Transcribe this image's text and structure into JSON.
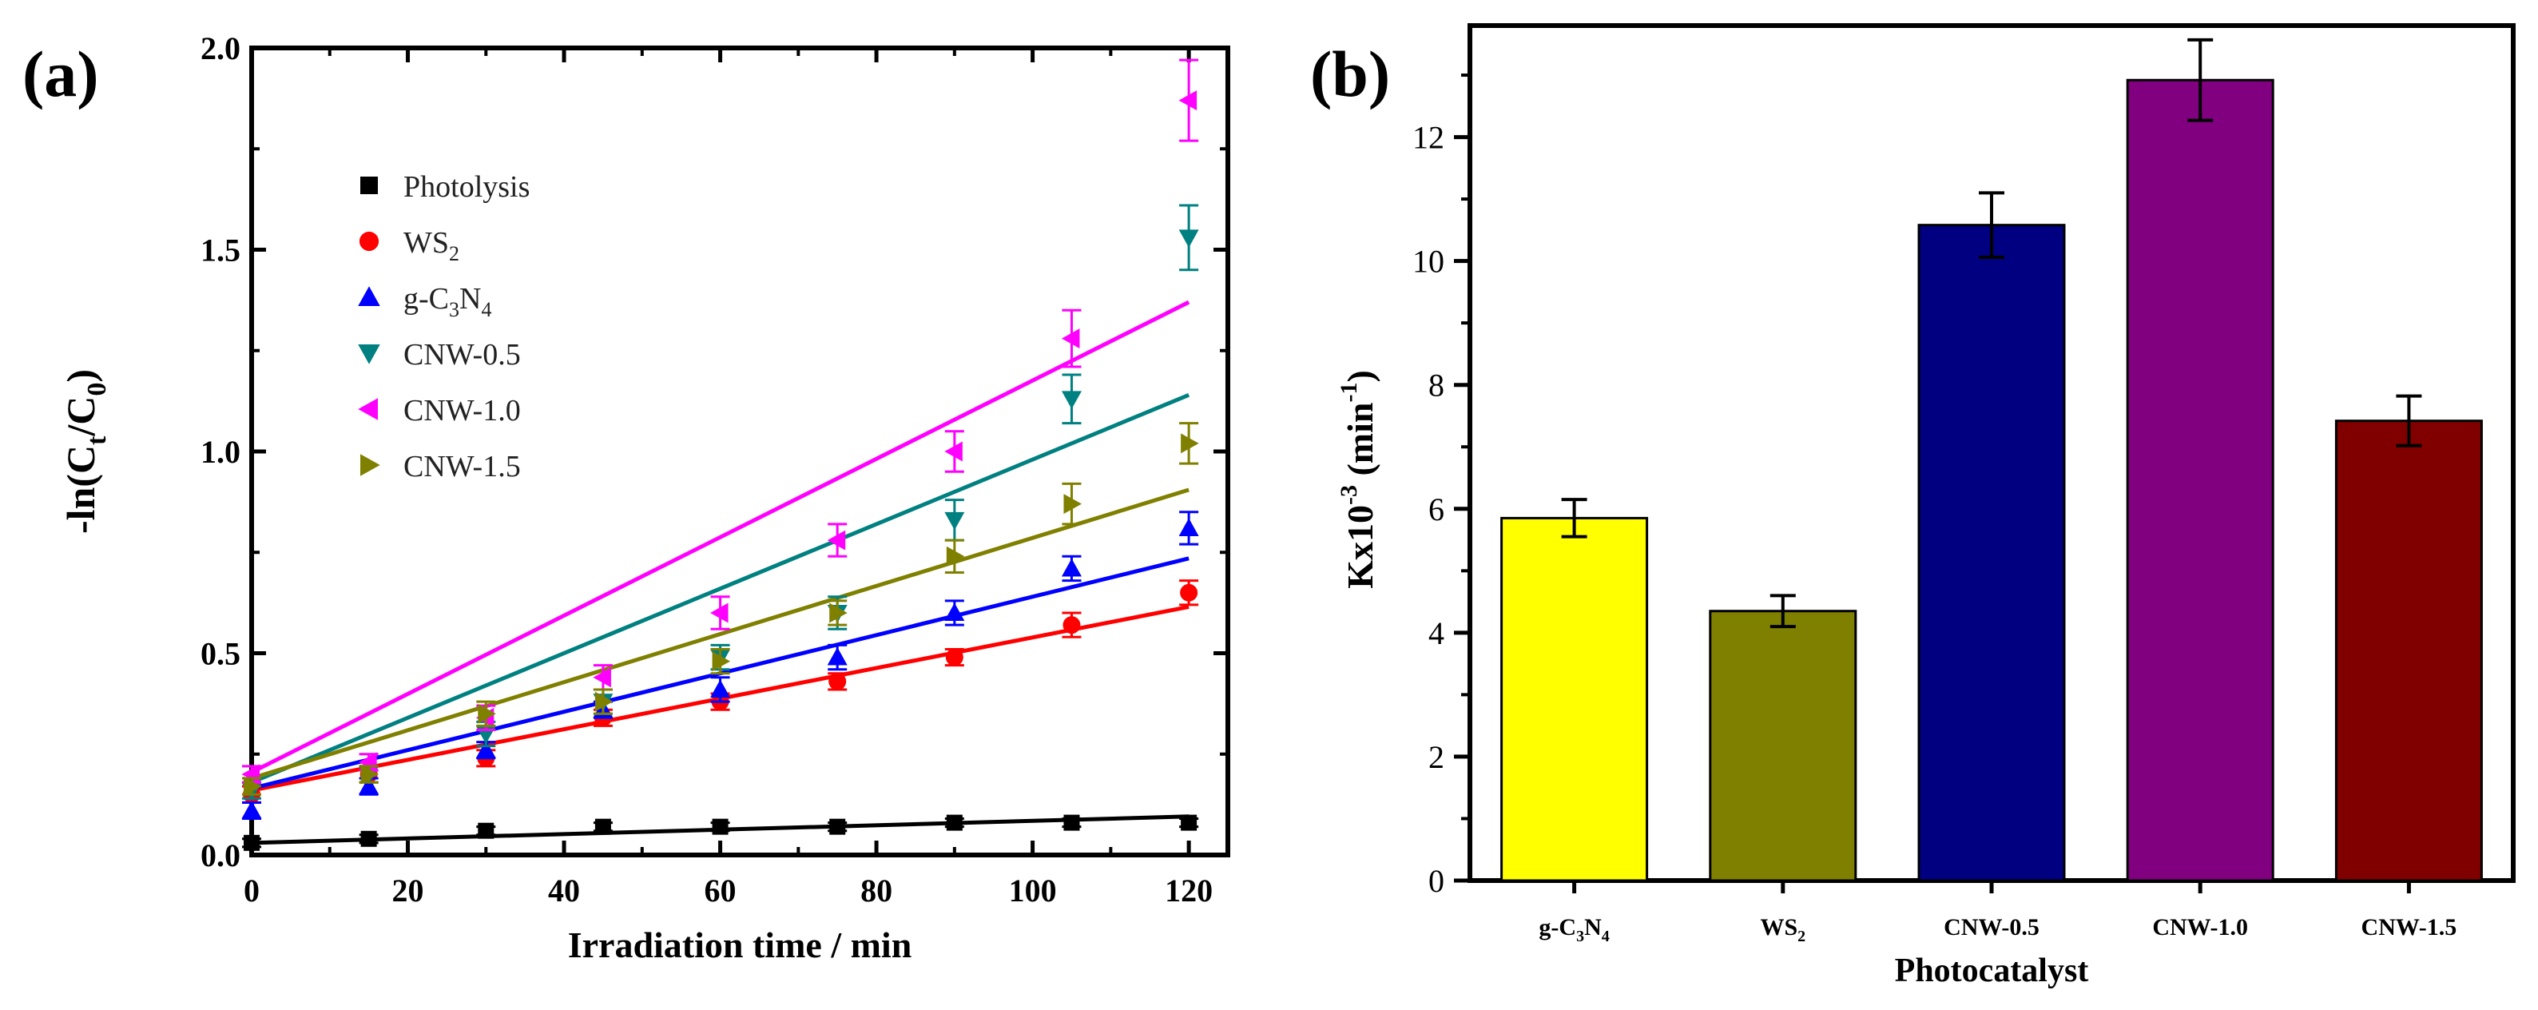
{
  "figure_labels": {
    "a": "(a)",
    "b": "(b)"
  },
  "colors": {
    "photolysis": "#000000",
    "ws2": "#ff0000",
    "gc3n4": "#0000ff",
    "cnw05": "#008080",
    "cnw10": "#ff00ff",
    "cnw15": "#808000",
    "bar_gc3n4": "#ffff00",
    "bar_ws2": "#808000",
    "bar_cnw05": "#000080",
    "bar_cnw10": "#800080",
    "bar_cnw15": "#800000"
  },
  "chart_data": [
    {
      "type": "scatter",
      "id": "a",
      "title": "",
      "xlabel": "Irradiation time / min",
      "ylabel": "-ln(C_t/C_0)",
      "xlim": [
        0,
        125
      ],
      "ylim": [
        0,
        2.0
      ],
      "xticks": [
        "0",
        "20",
        "40",
        "60",
        "80",
        "100",
        "120"
      ],
      "yticks": [
        "0.0",
        "0.5",
        "1.0",
        "1.5",
        "2.0"
      ],
      "legend": "top-left",
      "x": [
        0,
        15,
        30,
        45,
        60,
        75,
        90,
        105,
        120
      ],
      "series": [
        {
          "name": "Photolysis",
          "marker": "square",
          "color": "photolysis",
          "values": [
            0.03,
            0.04,
            0.06,
            0.07,
            0.07,
            0.07,
            0.08,
            0.08,
            0.08
          ],
          "errors": [
            0.01,
            0.01,
            0.01,
            0.01,
            0.01,
            0.01,
            0.01,
            0.01,
            0.01
          ],
          "fit": [
            0.03,
            0.0955
          ]
        },
        {
          "name": "WS2",
          "marker": "circle",
          "color": "ws2",
          "values": [
            0.15,
            0.2,
            0.24,
            0.34,
            0.38,
            0.43,
            0.49,
            0.57,
            0.65
          ],
          "errors": [
            0.02,
            0.02,
            0.02,
            0.02,
            0.02,
            0.02,
            0.02,
            0.03,
            0.03
          ],
          "fit": [
            0.16,
            0.615
          ]
        },
        {
          "name": "g-C3N4",
          "marker": "triangle-up",
          "color": "gc3n4",
          "values": [
            0.11,
            0.17,
            0.26,
            0.36,
            0.41,
            0.49,
            0.6,
            0.71,
            0.81
          ],
          "errors": [
            0.02,
            0.02,
            0.02,
            0.02,
            0.03,
            0.03,
            0.03,
            0.03,
            0.04
          ],
          "fit": [
            0.165,
            0.735
          ]
        },
        {
          "name": "CNW-0.5",
          "marker": "triangle-down",
          "color": "cnw05",
          "values": [
            0.16,
            0.2,
            0.3,
            0.38,
            0.49,
            0.6,
            0.83,
            1.13,
            1.53
          ],
          "errors": [
            0.02,
            0.02,
            0.03,
            0.03,
            0.03,
            0.04,
            0.05,
            0.06,
            0.08
          ],
          "fit": [
            0.18,
            1.14
          ]
        },
        {
          "name": "CNW-1.0",
          "marker": "triangle-left",
          "color": "cnw10",
          "values": [
            0.2,
            0.23,
            0.34,
            0.44,
            0.6,
            0.78,
            1.0,
            1.28,
            1.87
          ],
          "errors": [
            0.02,
            0.02,
            0.03,
            0.03,
            0.04,
            0.04,
            0.05,
            0.07,
            0.1
          ],
          "fit": [
            0.205,
            1.37
          ]
        },
        {
          "name": "CNW-1.5",
          "marker": "triangle-right",
          "color": "cnw15",
          "values": [
            0.17,
            0.2,
            0.35,
            0.38,
            0.48,
            0.6,
            0.74,
            0.87,
            1.02
          ],
          "errors": [
            0.02,
            0.02,
            0.03,
            0.03,
            0.03,
            0.03,
            0.04,
            0.05,
            0.05
          ],
          "fit": [
            0.19,
            0.905
          ]
        }
      ]
    },
    {
      "type": "bar",
      "id": "b",
      "title": "",
      "xlabel": "Photocatalyst",
      "ylabel": "Kx10^-3 (min^-1)",
      "ylim": [
        0,
        13.8
      ],
      "yticks": [
        "0",
        "2",
        "4",
        "6",
        "8",
        "10",
        "12"
      ],
      "categories": [
        "g-C3N4",
        "WS2",
        "CNW-0.5",
        "CNW-1.0",
        "CNW-1.5"
      ],
      "values": [
        5.85,
        4.35,
        10.58,
        12.92,
        7.42
      ],
      "errors": [
        0.3,
        0.25,
        0.52,
        0.65,
        0.4
      ],
      "bar_colors": [
        "bar_gc3n4",
        "bar_ws2",
        "bar_cnw05",
        "bar_cnw10",
        "bar_cnw15"
      ]
    }
  ]
}
